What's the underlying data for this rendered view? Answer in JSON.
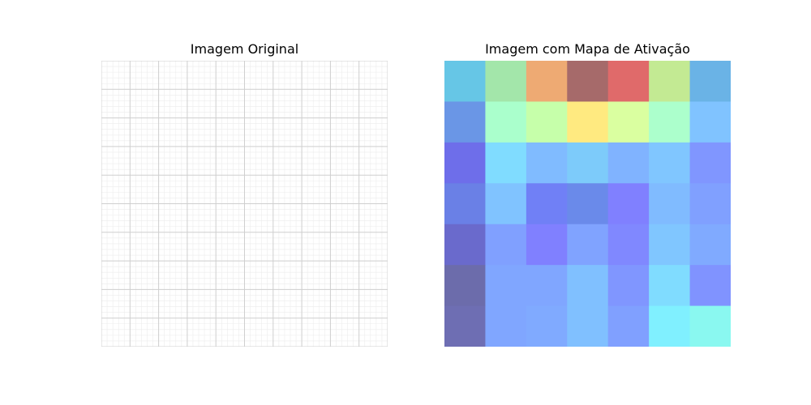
{
  "chart_data": [
    {
      "type": "image",
      "title": "Imagem Original",
      "description_colors": {
        "background": "#ffffff",
        "grid_major": "#cfcfcf",
        "grid_minor": "#ececec"
      },
      "major_grid_divisions": 10,
      "minor_grid_divisions": 50
    },
    {
      "type": "heatmap",
      "title": "Imagem com Mapa de Ativação",
      "rows": 7,
      "cols": 7,
      "cells": [
        [
          "#66c6e6",
          "#a3e6aa",
          "#eeaa73",
          "#a66a6a",
          "#e06a6a",
          "#c3ea93",
          "#6ab3e6"
        ],
        [
          "#6a96e6",
          "#aaffcc",
          "#c6ffaa",
          "#ffea80",
          "#daffa0",
          "#acffcc",
          "#80c3ff"
        ],
        [
          "#6e6eea",
          "#80dcff",
          "#80bbff",
          "#7dcbfa",
          "#80b3ff",
          "#80c6ff",
          "#8096ff"
        ],
        [
          "#6a80e6",
          "#80c3ff",
          "#7080f6",
          "#6a8aea",
          "#8080ff",
          "#80bbff",
          "#80a0ff"
        ],
        [
          "#6a6acc",
          "#80a0ff",
          "#8080ff",
          "#80a3ff",
          "#8088ff",
          "#80c6ff",
          "#80aaff"
        ],
        [
          "#6c6cab",
          "#80a6ff",
          "#80a6ff",
          "#80c0ff",
          "#8096ff",
          "#80dcff",
          "#8093ff"
        ],
        [
          "#6e6eb3",
          "#80a6ff",
          "#80aaff",
          "#80c0ff",
          "#80a0ff",
          "#80f0ff",
          "#8af8f0"
        ]
      ]
    }
  ]
}
